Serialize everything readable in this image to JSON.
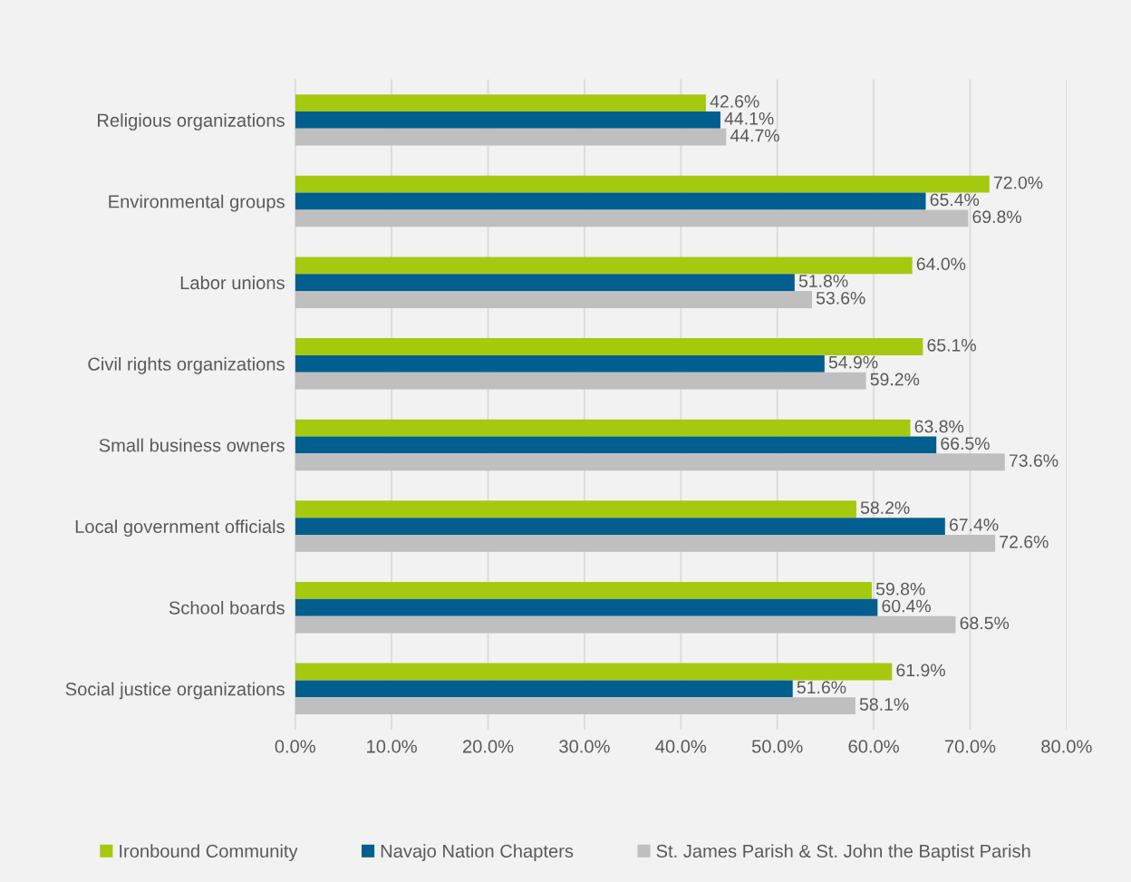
{
  "chart_data": {
    "type": "bar",
    "orientation": "horizontal",
    "categories": [
      "Religious organizations",
      "Environmental groups",
      "Labor unions",
      "Civil rights organizations",
      "Small business owners",
      "Local government officials",
      "School boards",
      "Social justice organizations"
    ],
    "series": [
      {
        "name": "Ironbound Community",
        "color": "#a5c90f",
        "values": [
          42.6,
          72.0,
          64.0,
          65.1,
          63.8,
          58.2,
          59.8,
          61.9
        ],
        "value_labels": [
          "42.6%",
          "72.0%",
          "64.0%",
          "65.1%",
          "63.8%",
          "58.2%",
          "59.8%",
          "61.9%"
        ]
      },
      {
        "name": "Navajo Nation Chapters",
        "color": "#005f8f",
        "values": [
          44.1,
          65.4,
          51.8,
          54.9,
          66.5,
          67.4,
          60.4,
          51.6
        ],
        "value_labels": [
          "44.1%",
          "65.4%",
          "51.8%",
          "54.9%",
          "66.5%",
          "67.4%",
          "60.4%",
          "51.6%"
        ]
      },
      {
        "name": "St. James Parish & St. John the Baptist Parish",
        "color": "#bfbfbf",
        "values": [
          44.7,
          69.8,
          53.6,
          59.2,
          73.6,
          72.6,
          68.5,
          58.1
        ],
        "value_labels": [
          "44.7%",
          "69.8%",
          "53.6%",
          "59.2%",
          "73.6%",
          "72.6%",
          "68.5%",
          "58.1%"
        ]
      }
    ],
    "xlim": [
      0,
      80
    ],
    "xticks": [
      {
        "value": 0,
        "label": "0.0%"
      },
      {
        "value": 10,
        "label": "10.0%"
      },
      {
        "value": 20,
        "label": "20.0%"
      },
      {
        "value": 30,
        "label": "30.0%"
      },
      {
        "value": 40,
        "label": "40.0%"
      },
      {
        "value": 50,
        "label": "50.0%"
      },
      {
        "value": 60,
        "label": "60.0%"
      },
      {
        "value": 70,
        "label": "70.0%"
      },
      {
        "value": 80,
        "label": "80.0%"
      }
    ],
    "grid": "x",
    "legend": "bottom"
  }
}
